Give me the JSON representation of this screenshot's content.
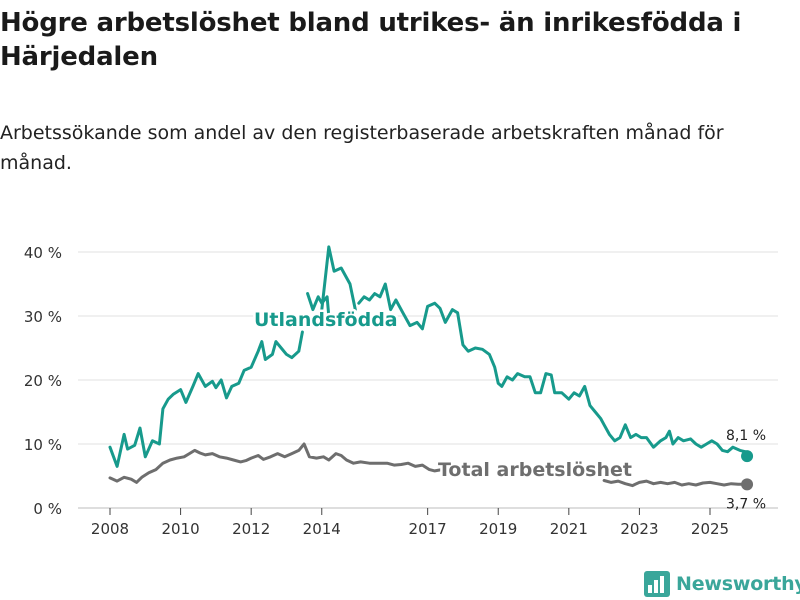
{
  "title": "Högre arbetslöshet bland utrikes- än inrikesfödda i Härjedalen",
  "subtitle": "Arbetssökande som andel av den registerbaserade arbetskraften månad för månad.",
  "brand": {
    "name": "Newsworthy",
    "icon": "bar-chart-logo-icon",
    "color": "#3aa69a"
  },
  "chart_data": {
    "type": "line",
    "ylim": [
      0,
      42
    ],
    "xlim": [
      2008,
      2027
    ],
    "yticks": [
      0,
      10,
      20,
      30,
      40
    ],
    "ytick_labels": [
      "0 %",
      "10 %",
      "20 %",
      "30 %",
      "40 %"
    ],
    "xticks": [
      2008,
      2010,
      2012,
      2014,
      2017,
      2019,
      2021,
      2023,
      2025
    ],
    "xtick_labels": [
      "2008",
      "2010",
      "2012",
      "2014",
      "2017",
      "2019",
      "2021",
      "2023",
      "2025"
    ],
    "series": [
      {
        "name": "Utlandsfödda",
        "color": "#179a8c",
        "end_label": "8,1 %",
        "points": [
          [
            2008.0,
            9.5
          ],
          [
            2008.2,
            6.5
          ],
          [
            2008.4,
            11.5
          ],
          [
            2008.5,
            9.2
          ],
          [
            2008.7,
            9.8
          ],
          [
            2008.85,
            12.5
          ],
          [
            2009.0,
            8.0
          ],
          [
            2009.2,
            10.5
          ],
          [
            2009.4,
            10.0
          ],
          [
            2009.5,
            15.5
          ],
          [
            2009.65,
            17.0
          ],
          [
            2009.8,
            17.8
          ],
          [
            2010.0,
            18.5
          ],
          [
            2010.15,
            16.5
          ],
          [
            2010.35,
            19.0
          ],
          [
            2010.5,
            21.0
          ],
          [
            2010.7,
            19.0
          ],
          [
            2010.9,
            19.8
          ],
          [
            2011.0,
            18.8
          ],
          [
            2011.15,
            20.0
          ],
          [
            2011.3,
            17.2
          ],
          [
            2011.45,
            19.0
          ],
          [
            2011.65,
            19.5
          ],
          [
            2011.8,
            21.5
          ],
          [
            2012.0,
            22.0
          ],
          [
            2012.2,
            24.5
          ],
          [
            2012.3,
            26.0
          ],
          [
            2012.4,
            23.2
          ],
          [
            2012.6,
            24.0
          ],
          [
            2012.7,
            26.0
          ],
          [
            2012.85,
            25.0
          ],
          [
            2013.0,
            24.0
          ],
          [
            2013.15,
            23.5
          ],
          [
            2013.35,
            24.5
          ],
          [
            2013.45,
            27.5
          ]
        ],
        "points_b": [
          [
            2013.6,
            33.5
          ],
          [
            2013.75,
            31.0
          ],
          [
            2013.9,
            33.0
          ],
          [
            2014.0,
            32.0
          ],
          [
            2014.15,
            33.0
          ],
          [
            2014.2,
            30.0
          ]
        ],
        "points_c": [
          [
            2014.0,
            31.0
          ],
          [
            2014.2,
            40.8
          ],
          [
            2014.35,
            37.0
          ],
          [
            2014.55,
            37.5
          ],
          [
            2014.8,
            35.0
          ],
          [
            2014.95,
            31.0
          ]
        ],
        "points_d": [
          [
            2015.05,
            32.0
          ],
          [
            2015.2,
            33.0
          ],
          [
            2015.35,
            32.5
          ],
          [
            2015.5,
            33.5
          ],
          [
            2015.65,
            33.0
          ],
          [
            2015.8,
            35.0
          ],
          [
            2015.95,
            31.0
          ],
          [
            2016.1,
            32.5
          ],
          [
            2016.3,
            30.5
          ],
          [
            2016.5,
            28.5
          ],
          [
            2016.7,
            29.0
          ],
          [
            2016.85,
            28.0
          ],
          [
            2017.0,
            31.5
          ],
          [
            2017.2,
            32.0
          ],
          [
            2017.35,
            31.2
          ],
          [
            2017.5,
            29.0
          ],
          [
            2017.7,
            31.0
          ],
          [
            2017.85,
            30.5
          ],
          [
            2018.0,
            25.5
          ],
          [
            2018.15,
            24.5
          ],
          [
            2018.35,
            25.0
          ],
          [
            2018.55,
            24.8
          ],
          [
            2018.75,
            24.0
          ],
          [
            2018.9,
            22.0
          ],
          [
            2019.0,
            19.5
          ],
          [
            2019.1,
            19.0
          ],
          [
            2019.25,
            20.5
          ],
          [
            2019.4,
            20.0
          ],
          [
            2019.55,
            21.0
          ],
          [
            2019.75,
            20.5
          ],
          [
            2019.9,
            20.5
          ],
          [
            2020.05,
            18.0
          ],
          [
            2020.2,
            18.0
          ],
          [
            2020.35,
            21.0
          ],
          [
            2020.5,
            20.8
          ],
          [
            2020.6,
            18.0
          ],
          [
            2020.8,
            18.0
          ],
          [
            2021.0,
            17.0
          ],
          [
            2021.15,
            18.0
          ],
          [
            2021.3,
            17.5
          ],
          [
            2021.45,
            19.0
          ],
          [
            2021.6,
            16.0
          ],
          [
            2021.75,
            15.0
          ],
          [
            2021.9,
            14.0
          ],
          [
            2022.0,
            13.0
          ],
          [
            2022.15,
            11.5
          ],
          [
            2022.3,
            10.5
          ],
          [
            2022.45,
            11.0
          ],
          [
            2022.6,
            13.0
          ],
          [
            2022.75,
            11.0
          ],
          [
            2022.9,
            11.5
          ],
          [
            2023.05,
            11.0
          ],
          [
            2023.2,
            11.0
          ],
          [
            2023.4,
            9.5
          ],
          [
            2023.6,
            10.5
          ],
          [
            2023.75,
            11.0
          ],
          [
            2023.85,
            12.0
          ],
          [
            2023.95,
            10.0
          ],
          [
            2024.1,
            11.0
          ],
          [
            2024.25,
            10.5
          ],
          [
            2024.45,
            10.8
          ],
          [
            2024.6,
            10.0
          ],
          [
            2024.75,
            9.5
          ],
          [
            2024.9,
            10.0
          ],
          [
            2025.05,
            10.5
          ],
          [
            2025.2,
            10.0
          ],
          [
            2025.35,
            9.0
          ],
          [
            2025.5,
            8.8
          ],
          [
            2025.65,
            9.5
          ],
          [
            2025.85,
            9.0
          ],
          [
            2026.0,
            8.8
          ],
          [
            2026.05,
            8.1
          ]
        ],
        "label": "Utlandsfödda"
      },
      {
        "name": "Total arbetslöshet",
        "color": "#6e6e6e",
        "end_label": "3,7 %",
        "points": [
          [
            2008.0,
            4.7
          ],
          [
            2008.2,
            4.2
          ],
          [
            2008.4,
            4.8
          ],
          [
            2008.6,
            4.5
          ],
          [
            2008.75,
            4.0
          ],
          [
            2008.9,
            4.8
          ],
          [
            2009.1,
            5.5
          ],
          [
            2009.3,
            6.0
          ],
          [
            2009.5,
            7.0
          ],
          [
            2009.7,
            7.5
          ],
          [
            2009.9,
            7.8
          ],
          [
            2010.1,
            8.0
          ],
          [
            2010.25,
            8.5
          ],
          [
            2010.4,
            9.0
          ],
          [
            2010.55,
            8.6
          ],
          [
            2010.7,
            8.3
          ],
          [
            2010.9,
            8.5
          ],
          [
            2011.1,
            8.0
          ],
          [
            2011.3,
            7.8
          ],
          [
            2011.5,
            7.5
          ],
          [
            2011.7,
            7.2
          ],
          [
            2011.85,
            7.4
          ],
          [
            2012.0,
            7.8
          ],
          [
            2012.2,
            8.2
          ],
          [
            2012.35,
            7.6
          ],
          [
            2012.55,
            8.0
          ],
          [
            2012.75,
            8.5
          ],
          [
            2012.95,
            8.0
          ],
          [
            2013.15,
            8.5
          ],
          [
            2013.35,
            9.0
          ],
          [
            2013.5,
            10.0
          ],
          [
            2013.65,
            8.0
          ],
          [
            2013.85,
            7.8
          ],
          [
            2014.05,
            8.0
          ],
          [
            2014.2,
            7.5
          ],
          [
            2014.4,
            8.5
          ],
          [
            2014.55,
            8.2
          ],
          [
            2014.7,
            7.5
          ],
          [
            2014.9,
            7.0
          ],
          [
            2015.1,
            7.2
          ],
          [
            2015.35,
            7.0
          ],
          [
            2015.6,
            7.0
          ],
          [
            2015.85,
            7.0
          ],
          [
            2016.05,
            6.7
          ],
          [
            2016.25,
            6.8
          ],
          [
            2016.45,
            7.0
          ],
          [
            2016.65,
            6.5
          ],
          [
            2016.85,
            6.7
          ],
          [
            2017.05,
            6.0
          ],
          [
            2017.2,
            5.8
          ],
          [
            2017.4,
            6.0
          ],
          [
            2017.5,
            6.4
          ]
        ],
        "points_b": [
          [
            2022.0,
            4.3
          ],
          [
            2022.2,
            4.0
          ],
          [
            2022.4,
            4.2
          ],
          [
            2022.6,
            3.8
          ],
          [
            2022.8,
            3.5
          ],
          [
            2023.0,
            4.0
          ],
          [
            2023.2,
            4.2
          ],
          [
            2023.4,
            3.8
          ],
          [
            2023.6,
            4.0
          ],
          [
            2023.8,
            3.8
          ],
          [
            2024.0,
            4.0
          ],
          [
            2024.2,
            3.6
          ],
          [
            2024.4,
            3.8
          ],
          [
            2024.6,
            3.6
          ],
          [
            2024.8,
            3.9
          ],
          [
            2025.0,
            4.0
          ],
          [
            2025.2,
            3.8
          ],
          [
            2025.4,
            3.6
          ],
          [
            2025.6,
            3.8
          ],
          [
            2025.8,
            3.7
          ],
          [
            2026.05,
            3.7
          ]
        ],
        "label": "Total arbetslöshet"
      }
    ]
  }
}
